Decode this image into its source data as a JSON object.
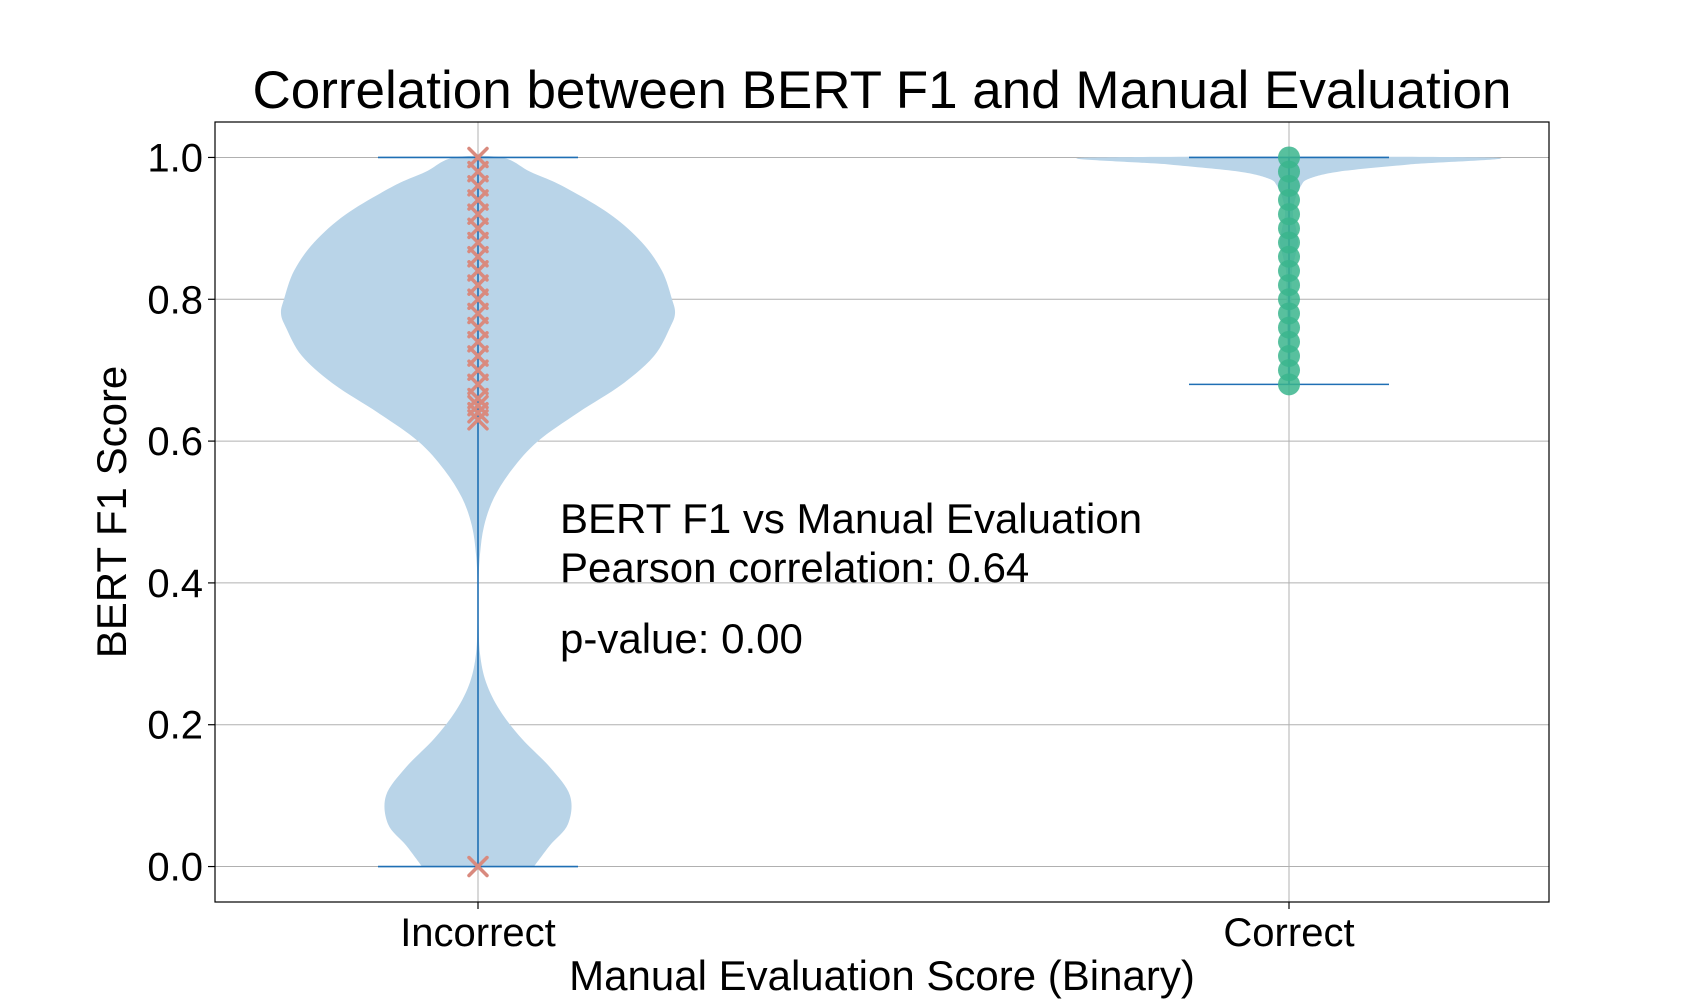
{
  "chart_data": {
    "type": "violin",
    "title": "Correlation between BERT F1 and Manual Evaluation",
    "xlabel": "Manual Evaluation Score (Binary)",
    "ylabel": "BERT F1 Score",
    "ylim": [
      -0.05,
      1.05
    ],
    "yticks": [
      "0.0",
      "0.2",
      "0.4",
      "0.6",
      "0.8",
      "1.0"
    ],
    "ytick_values": [
      0.0,
      0.2,
      0.4,
      0.6,
      0.8,
      1.0
    ],
    "categories": [
      "Incorrect",
      "Correct"
    ],
    "grid": true,
    "violin_color": "#b9d4e8",
    "line_color": "#1f6fb4",
    "violins": [
      {
        "category": "Incorrect",
        "min": 0.0,
        "max": 1.0,
        "marker": "x",
        "marker_color": "#d98a7e",
        "points": [
          0.0,
          0.63,
          0.64,
          0.65,
          0.66,
          0.68,
          0.7,
          0.72,
          0.74,
          0.76,
          0.78,
          0.8,
          0.82,
          0.84,
          0.86,
          0.88,
          0.9,
          0.92,
          0.94,
          0.96,
          0.98,
          1.0
        ],
        "density": [
          [
            0.0,
            0.28
          ],
          [
            0.03,
            0.36
          ],
          [
            0.06,
            0.45
          ],
          [
            0.1,
            0.46
          ],
          [
            0.14,
            0.36
          ],
          [
            0.18,
            0.22
          ],
          [
            0.22,
            0.11
          ],
          [
            0.26,
            0.04
          ],
          [
            0.3,
            0.01
          ],
          [
            0.35,
            0.002
          ],
          [
            0.4,
            0.002
          ],
          [
            0.44,
            0.01
          ],
          [
            0.48,
            0.03
          ],
          [
            0.52,
            0.08
          ],
          [
            0.56,
            0.17
          ],
          [
            0.6,
            0.3
          ],
          [
            0.64,
            0.5
          ],
          [
            0.68,
            0.72
          ],
          [
            0.72,
            0.88
          ],
          [
            0.76,
            0.96
          ],
          [
            0.78,
            0.985
          ],
          [
            0.8,
            0.97
          ],
          [
            0.84,
            0.92
          ],
          [
            0.88,
            0.82
          ],
          [
            0.92,
            0.66
          ],
          [
            0.96,
            0.42
          ],
          [
            0.98,
            0.26
          ],
          [
            1.0,
            0.12
          ]
        ]
      },
      {
        "category": "Correct",
        "min": 0.68,
        "max": 1.0,
        "marker": "o",
        "marker_color": "#3bb58d",
        "points": [
          0.68,
          0.7,
          0.72,
          0.74,
          0.76,
          0.78,
          0.8,
          0.82,
          0.84,
          0.86,
          0.88,
          0.9,
          0.92,
          0.94,
          0.96,
          0.98,
          1.0
        ],
        "density": [
          [
            0.68,
            0.005
          ],
          [
            0.72,
            0.008
          ],
          [
            0.76,
            0.01
          ],
          [
            0.8,
            0.012
          ],
          [
            0.84,
            0.015
          ],
          [
            0.86,
            0.03
          ],
          [
            0.88,
            0.045
          ],
          [
            0.9,
            0.035
          ],
          [
            0.92,
            0.02
          ],
          [
            0.94,
            0.03
          ],
          [
            0.96,
            0.06
          ],
          [
            0.97,
            0.1
          ],
          [
            0.98,
            0.25
          ],
          [
            0.99,
            0.6
          ],
          [
            1.0,
            0.99
          ]
        ]
      }
    ],
    "annotations": [
      "BERT F1 vs Manual Evaluation",
      "Pearson correlation: 0.64",
      "p-value: 0.00"
    ]
  }
}
